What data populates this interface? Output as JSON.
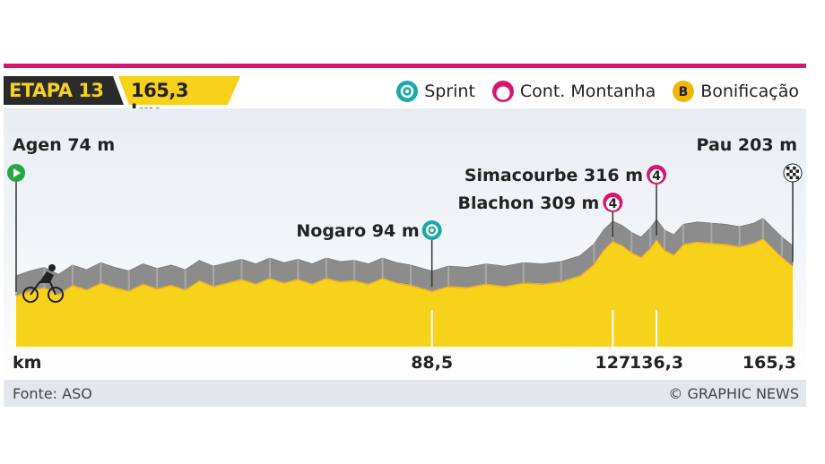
{
  "header": {
    "stage": "ETAPA 13",
    "distance": "165,3 km"
  },
  "legend": [
    {
      "label": "Sprint",
      "icon": "sprint-icon"
    },
    {
      "label": "Cont. Montanha",
      "icon": "mountain-icon"
    },
    {
      "label": "Bonificação",
      "icon": "bonus-icon",
      "icon_text": "B"
    }
  ],
  "colors": {
    "accent": "#d8156e",
    "yellow": "#f7d21b",
    "profile_gray": "#8c8c8c",
    "sprint": "#1aa9a8",
    "start": "#27a844"
  },
  "chart_data": {
    "type": "area",
    "x_unit": "km",
    "x_max": 165.3,
    "markers": [
      {
        "label": "Agen 74 m",
        "km": 0,
        "type": "start"
      },
      {
        "label": "Nogaro 94 m",
        "km": 88.5,
        "type": "sprint"
      },
      {
        "label": "Blachon 309 m",
        "km": 127,
        "type": "climb",
        "category": "4"
      },
      {
        "label": "Simacourbe 316 m",
        "km": 136.3,
        "type": "climb",
        "category": "4"
      },
      {
        "label": "Pau 203 m",
        "km": 165.3,
        "type": "finish"
      }
    ],
    "axis_labels": [
      {
        "text": "km",
        "km": 0
      },
      {
        "text": "88,5",
        "km": 88.5
      },
      {
        "text": "127",
        "km": 127
      },
      {
        "text": "136,3",
        "km": 136.3
      },
      {
        "text": "165,3",
        "km": 165.3
      }
    ],
    "profile": [
      [
        0,
        74
      ],
      [
        3,
        95
      ],
      [
        6,
        110
      ],
      [
        9,
        80
      ],
      [
        12,
        120
      ],
      [
        15,
        100
      ],
      [
        18,
        130
      ],
      [
        21,
        110
      ],
      [
        24,
        95
      ],
      [
        27,
        125
      ],
      [
        30,
        105
      ],
      [
        33,
        120
      ],
      [
        36,
        100
      ],
      [
        39,
        140
      ],
      [
        42,
        115
      ],
      [
        45,
        130
      ],
      [
        48,
        145
      ],
      [
        51,
        125
      ],
      [
        54,
        150
      ],
      [
        57,
        130
      ],
      [
        60,
        145
      ],
      [
        63,
        125
      ],
      [
        66,
        150
      ],
      [
        69,
        135
      ],
      [
        72,
        140
      ],
      [
        75,
        125
      ],
      [
        78,
        150
      ],
      [
        81,
        130
      ],
      [
        84,
        120
      ],
      [
        88.5,
        94
      ],
      [
        92,
        115
      ],
      [
        96,
        110
      ],
      [
        100,
        125
      ],
      [
        104,
        115
      ],
      [
        108,
        130
      ],
      [
        112,
        125
      ],
      [
        116,
        135
      ],
      [
        120,
        160
      ],
      [
        123,
        210
      ],
      [
        125,
        270
      ],
      [
        127,
        309
      ],
      [
        129,
        290
      ],
      [
        131,
        260
      ],
      [
        133,
        240
      ],
      [
        135,
        280
      ],
      [
        136.3,
        316
      ],
      [
        138,
        270
      ],
      [
        140,
        250
      ],
      [
        142,
        295
      ],
      [
        145,
        305
      ],
      [
        148,
        300
      ],
      [
        151,
        295
      ],
      [
        154,
        285
      ],
      [
        157,
        300
      ],
      [
        159,
        320
      ],
      [
        161,
        280
      ],
      [
        163,
        240
      ],
      [
        165.3,
        203
      ]
    ],
    "ylim": [
      0,
      500
    ]
  },
  "footer": {
    "source": "Fonte: ASO",
    "credit": "© GRAPHIC NEWS"
  }
}
